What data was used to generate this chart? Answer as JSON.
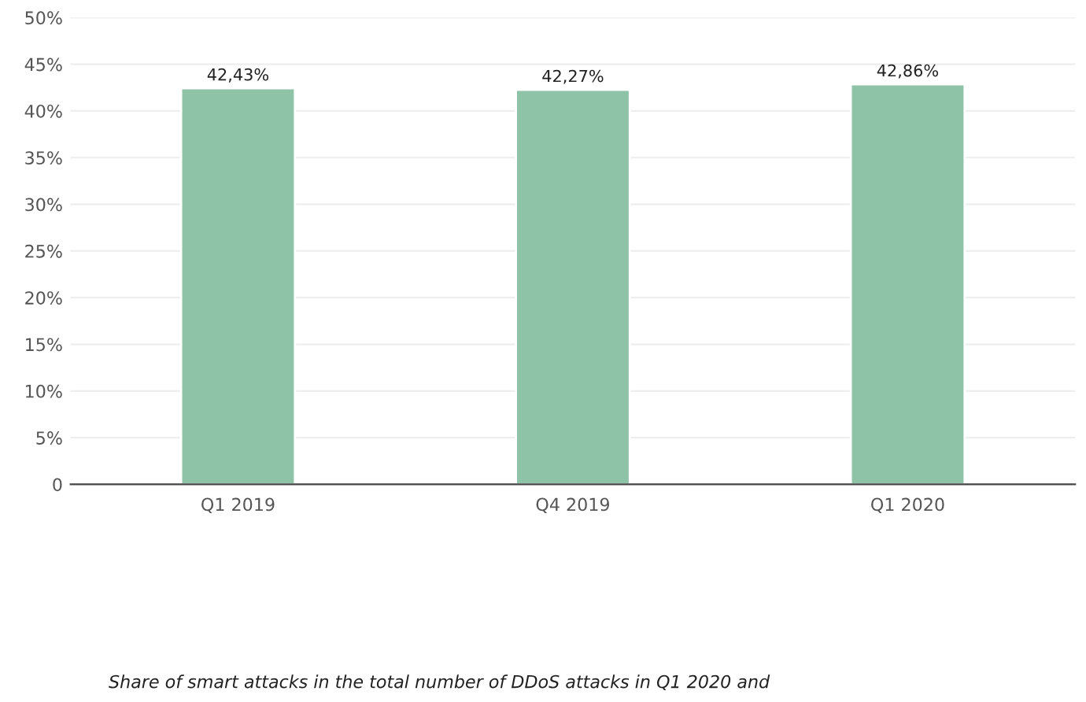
{
  "chart_data": {
    "type": "bar",
    "categories": [
      "Q1 2019",
      "Q4 2019",
      "Q1 2020"
    ],
    "values": [
      42.43,
      42.27,
      42.86
    ],
    "value_labels": [
      "42,43%",
      "42,27%",
      "42,86%"
    ],
    "color": "#8fc3a7",
    "ylim": [
      0,
      50
    ],
    "yticks": [
      {
        "value": 0,
        "label": "0"
      },
      {
        "value": 5,
        "label": "5%"
      },
      {
        "value": 10,
        "label": "10%"
      },
      {
        "value": 15,
        "label": "15%"
      },
      {
        "value": 20,
        "label": "20%"
      },
      {
        "value": 25,
        "label": "25%"
      },
      {
        "value": 30,
        "label": "30%"
      },
      {
        "value": 35,
        "label": "35%"
      },
      {
        "value": 40,
        "label": "40%"
      },
      {
        "value": 45,
        "label": "45%"
      },
      {
        "value": 50,
        "label": "50%"
      }
    ],
    "grid": "y",
    "annotations": [
      "Share of smart attacks in the total number of DDoS attacks in Q1 2020 and"
    ]
  }
}
